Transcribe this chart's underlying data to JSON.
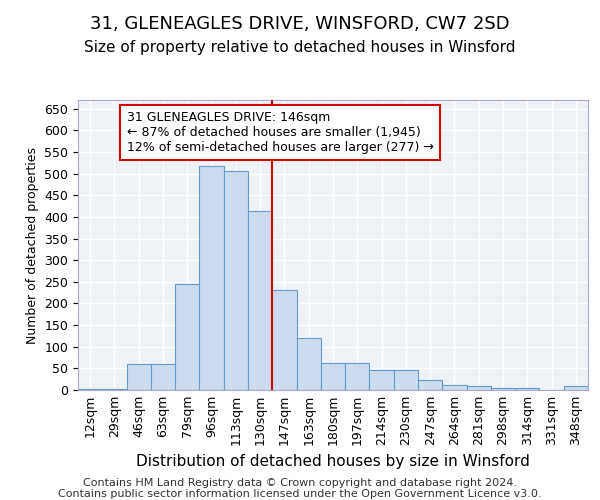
{
  "title": "31, GLENEAGLES DRIVE, WINSFORD, CW7 2SD",
  "subtitle": "Size of property relative to detached houses in Winsford",
  "xlabel": "Distribution of detached houses by size in Winsford",
  "ylabel": "Number of detached properties",
  "categories": [
    "12sqm",
    "29sqm",
    "46sqm",
    "63sqm",
    "79sqm",
    "96sqm",
    "113sqm",
    "130sqm",
    "147sqm",
    "163sqm",
    "180sqm",
    "197sqm",
    "214sqm",
    "230sqm",
    "247sqm",
    "264sqm",
    "281sqm",
    "298sqm",
    "314sqm",
    "331sqm",
    "348sqm"
  ],
  "bar_heights": [
    2,
    3,
    60,
    60,
    245,
    518,
    505,
    413,
    230,
    120,
    63,
    63,
    46,
    46,
    23,
    12,
    9,
    5,
    4,
    1,
    9
  ],
  "bar_color": "#ccdcee",
  "bar_edge_color": "#6699cc",
  "vline_color": "#cc0000",
  "annotation_text": "31 GLENEAGLES DRIVE: 146sqm\n← 87% of detached houses are smaller (1,945)\n12% of semi-detached houses are larger (277) →",
  "annotation_box_edge_color": "#cc0000",
  "bg_color": "#eef2f7",
  "grid_color": "#ffffff",
  "ylim": [
    0,
    670
  ],
  "yticks": [
    0,
    50,
    100,
    150,
    200,
    250,
    300,
    350,
    400,
    450,
    500,
    550,
    600,
    650
  ],
  "footer_line1": "Contains HM Land Registry data © Crown copyright and database right 2024.",
  "footer_line2": "Contains public sector information licensed under the Open Government Licence v3.0.",
  "title_fontsize": 13,
  "subtitle_fontsize": 11,
  "xlabel_fontsize": 11,
  "ylabel_fontsize": 9,
  "tick_fontsize": 9,
  "footer_fontsize": 8,
  "annot_fontsize": 9
}
